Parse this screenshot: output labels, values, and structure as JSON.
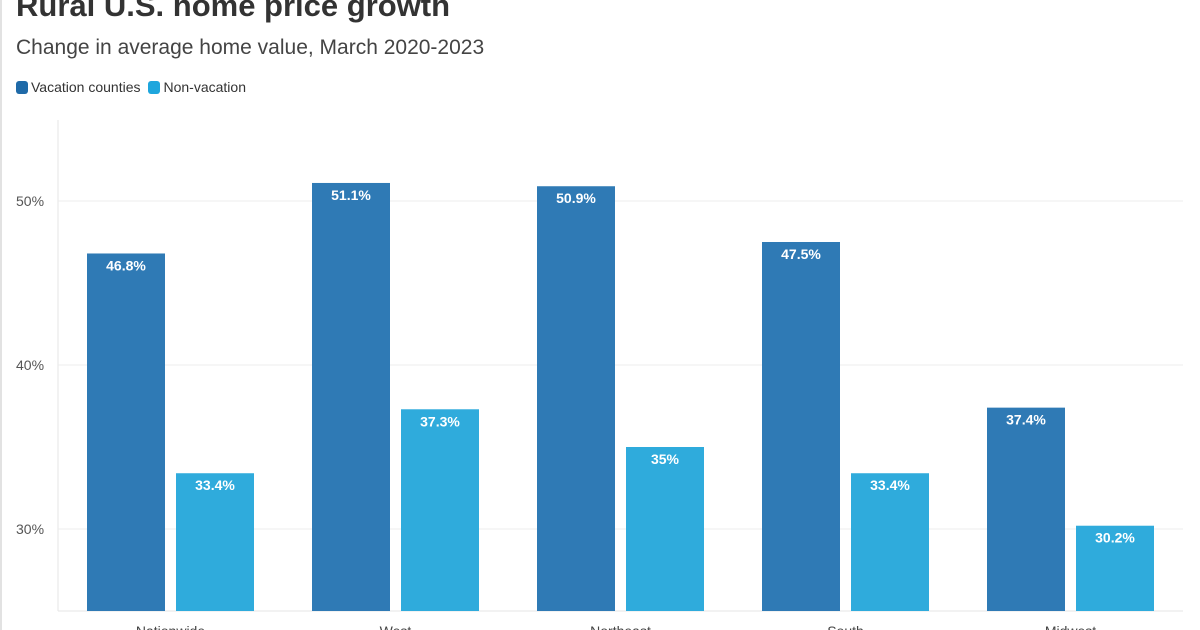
{
  "chart_data": {
    "type": "bar",
    "title": "Rural U.S. home price growth",
    "subtitle": "Change in average home value, March 2020-2023",
    "categories": [
      "Nationwide",
      "West",
      "Northeast",
      "South",
      "Midwest"
    ],
    "series": [
      {
        "name": "Vacation counties",
        "color": "#2f7ab5",
        "values": [
          46.8,
          51.1,
          50.9,
          47.5,
          37.4
        ],
        "labels": [
          "46.8%",
          "51.1%",
          "50.9%",
          "47.5%",
          "37.4%"
        ]
      },
      {
        "name": "Non-vacation",
        "color": "#2fabdc",
        "values": [
          33.4,
          37.3,
          35,
          33.4,
          30.2
        ],
        "labels": [
          "33.4%",
          "37.3%",
          "35%",
          "33.4%",
          "30.2%"
        ]
      }
    ],
    "yticks": [
      30,
      40,
      50
    ],
    "ytick_labels": [
      "30%",
      "40%",
      "50%"
    ],
    "ylim": [
      25,
      55
    ],
    "grid": true,
    "legend": "top-left"
  }
}
